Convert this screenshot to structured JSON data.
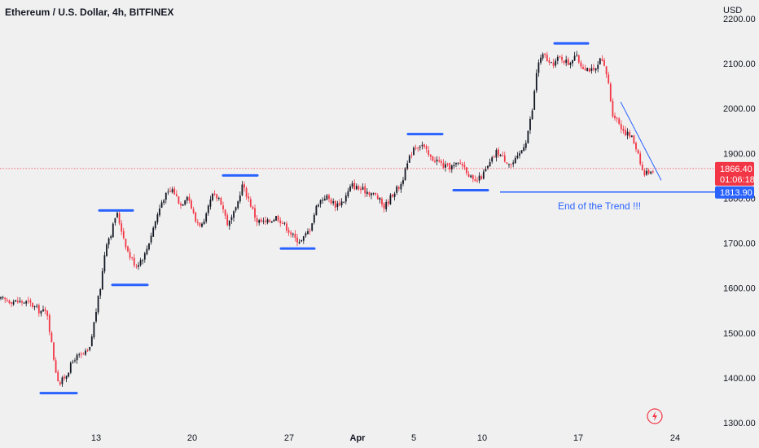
{
  "header": {
    "title": "Ethereum / U.S. Dollar, 4h, BITFINEX"
  },
  "colors": {
    "up": "#131722",
    "down": "#f23645",
    "accent": "#2962ff",
    "bg": "#f0f0f0"
  },
  "chart_data": {
    "type": "candlestick",
    "title": "Ethereum / U.S. Dollar, 4h, BITFINEX",
    "y_unit": "USD",
    "ylim": [
      1300,
      2200
    ],
    "y_ticks": [
      "2200.00",
      "2100.00",
      "2000.00",
      "1900.00",
      "1800.00",
      "1700.00",
      "1600.00",
      "1500.00",
      "1400.00",
      "1300.00"
    ],
    "x_ticks": [
      "13",
      "20",
      "27",
      "Apr",
      "5",
      "10",
      "17",
      "24"
    ],
    "current_price": "1866.40",
    "countdown": "01:06:18",
    "support_level": "1813.90",
    "support_value": 1813.9,
    "annotation": "End of the Trend !!!",
    "price_path": [
      [
        0,
        1575
      ],
      [
        20,
        1570
      ],
      [
        35,
        1568
      ],
      [
        48,
        1550
      ],
      [
        58,
        1545
      ],
      [
        63,
        1480
      ],
      [
        68,
        1420
      ],
      [
        73,
        1385
      ],
      [
        82,
        1410
      ],
      [
        92,
        1445
      ],
      [
        102,
        1450
      ],
      [
        110,
        1462
      ],
      [
        117,
        1540
      ],
      [
        124,
        1610
      ],
      [
        130,
        1700
      ],
      [
        137,
        1725
      ],
      [
        143,
        1770
      ],
      [
        150,
        1725
      ],
      [
        158,
        1675
      ],
      [
        167,
        1650
      ],
      [
        178,
        1675
      ],
      [
        190,
        1745
      ],
      [
        200,
        1800
      ],
      [
        212,
        1820
      ],
      [
        222,
        1785
      ],
      [
        230,
        1810
      ],
      [
        240,
        1750
      ],
      [
        250,
        1738
      ],
      [
        260,
        1805
      ],
      [
        270,
        1800
      ],
      [
        280,
        1740
      ],
      [
        290,
        1775
      ],
      [
        297,
        1830
      ],
      [
        305,
        1800
      ],
      [
        315,
        1750
      ],
      [
        327,
        1745
      ],
      [
        340,
        1760
      ],
      [
        352,
        1735
      ],
      [
        362,
        1710
      ],
      [
        370,
        1705
      ],
      [
        380,
        1730
      ],
      [
        390,
        1790
      ],
      [
        400,
        1805
      ],
      [
        412,
        1785
      ],
      [
        422,
        1795
      ],
      [
        432,
        1830
      ],
      [
        442,
        1820
      ],
      [
        452,
        1815
      ],
      [
        462,
        1805
      ],
      [
        472,
        1780
      ],
      [
        482,
        1810
      ],
      [
        492,
        1830
      ],
      [
        500,
        1875
      ],
      [
        508,
        1915
      ],
      [
        518,
        1920
      ],
      [
        528,
        1890
      ],
      [
        536,
        1885
      ],
      [
        546,
        1870
      ],
      [
        556,
        1870
      ],
      [
        566,
        1880
      ],
      [
        574,
        1860
      ],
      [
        582,
        1832
      ],
      [
        592,
        1850
      ],
      [
        600,
        1872
      ],
      [
        610,
        1905
      ],
      [
        618,
        1890
      ],
      [
        628,
        1875
      ],
      [
        636,
        1890
      ],
      [
        646,
        1930
      ],
      [
        654,
        2000
      ],
      [
        660,
        2100
      ],
      [
        668,
        2120
      ],
      [
        676,
        2095
      ],
      [
        688,
        2115
      ],
      [
        698,
        2100
      ],
      [
        706,
        2120
      ],
      [
        714,
        2095
      ],
      [
        722,
        2090
      ],
      [
        730,
        2080
      ],
      [
        738,
        2110
      ],
      [
        746,
        2070
      ],
      [
        752,
        1990
      ],
      [
        758,
        1975
      ],
      [
        766,
        1950
      ],
      [
        776,
        1935
      ],
      [
        784,
        1900
      ],
      [
        790,
        1852
      ],
      [
        796,
        1860
      ],
      [
        804,
        1866
      ]
    ]
  }
}
